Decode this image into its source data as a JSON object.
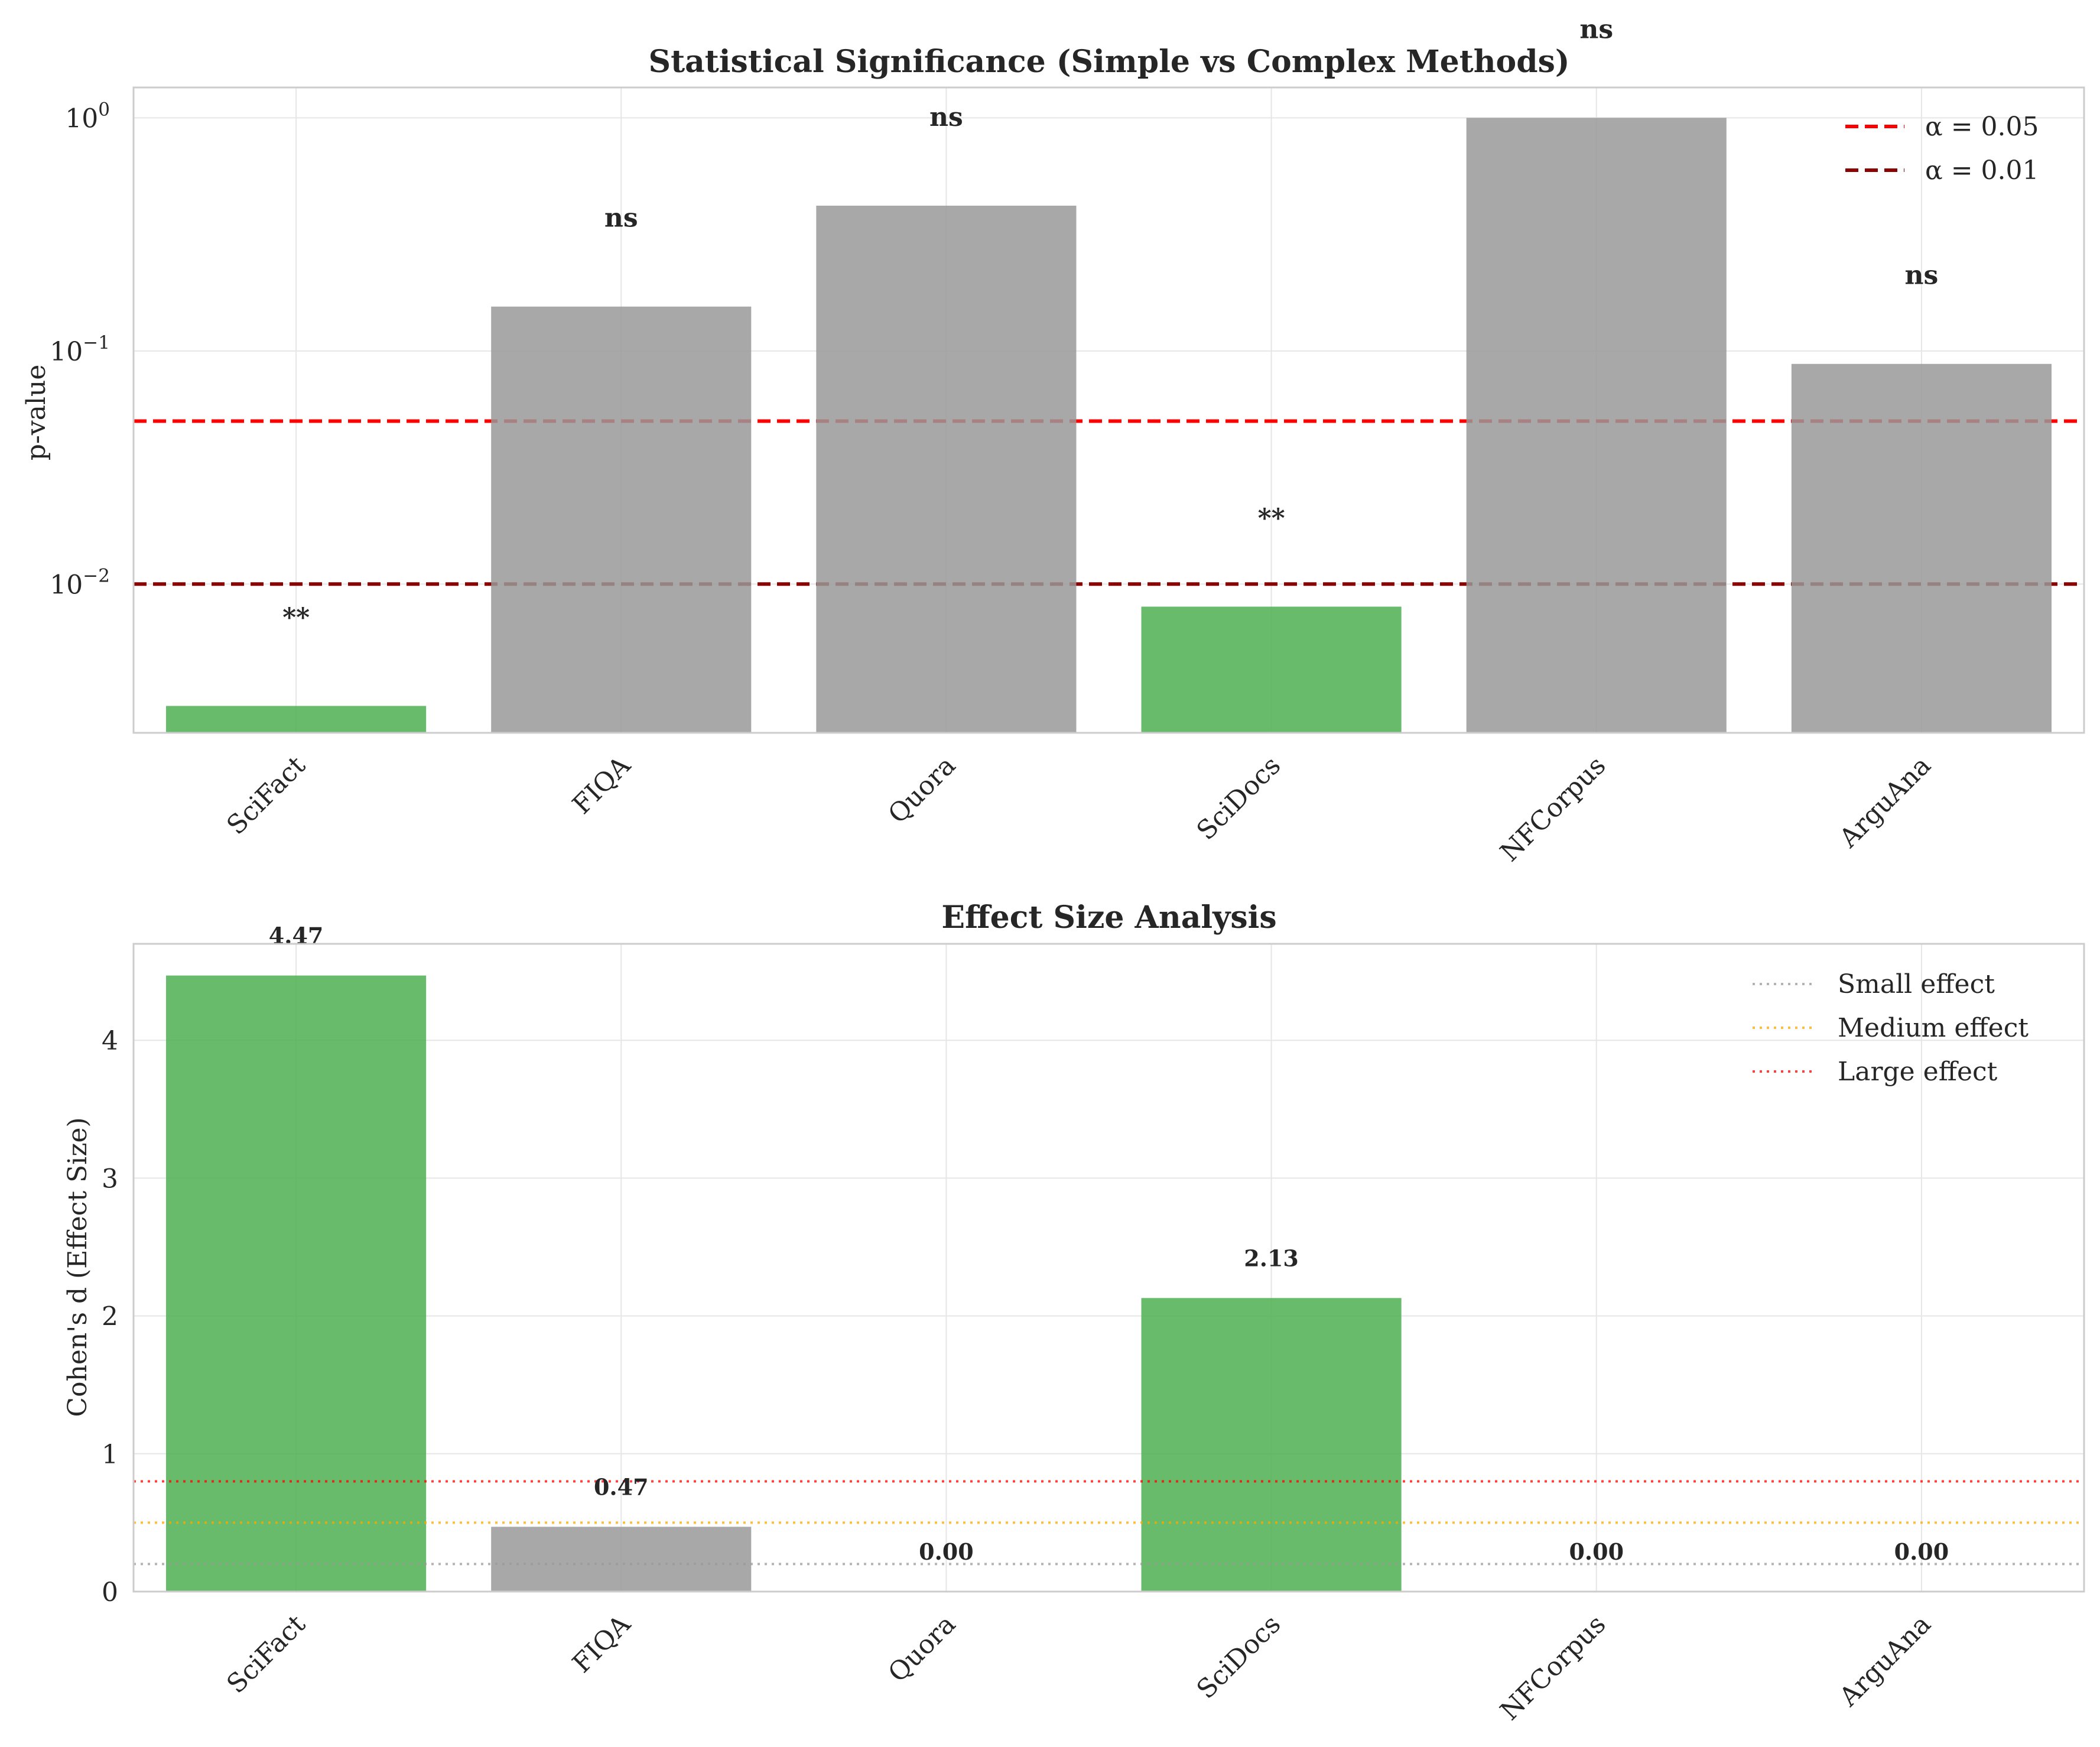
{
  "chart_data": [
    {
      "type": "bar",
      "title": "Statistical Significance (Simple vs Complex Methods)",
      "xlabel": "",
      "ylabel": "p-value",
      "yscale": "log",
      "ylim": [
        0.0023,
        1.35
      ],
      "yticks": [
        {
          "value": 0.01,
          "base": "10",
          "exp": "−2"
        },
        {
          "value": 0.1,
          "base": "10",
          "exp": "−1"
        },
        {
          "value": 1,
          "base": "10",
          "exp": "0"
        }
      ],
      "categories": [
        "SciFact",
        "FIQA",
        "Quora",
        "SciDocs",
        "NFCorpus",
        "ArguAna"
      ],
      "values": [
        0.003,
        0.155,
        0.42,
        0.008,
        1.0,
        0.088
      ],
      "bar_colors": [
        "#4caf50",
        "#999999",
        "#999999",
        "#4caf50",
        "#999999",
        "#999999"
      ],
      "annotations": [
        "**",
        "ns",
        "ns",
        "**",
        "ns",
        "ns"
      ],
      "reference_lines": [
        {
          "label": "α = 0.05",
          "value": 0.05,
          "color": "#ff0000",
          "style": "dashed"
        },
        {
          "label": "α = 0.01",
          "value": 0.01,
          "color": "#8b0000",
          "style": "dashed"
        }
      ],
      "legend_position": "top-right",
      "grid": true
    },
    {
      "type": "bar",
      "title": "Effect Size Analysis",
      "xlabel": "",
      "ylabel": "Cohen's d (Effect Size)",
      "ylim": [
        0,
        4.7
      ],
      "yticks": [
        0,
        1,
        2,
        3,
        4
      ],
      "categories": [
        "SciFact",
        "FIQA",
        "Quora",
        "SciDocs",
        "NFCorpus",
        "ArguAna"
      ],
      "values": [
        4.47,
        0.47,
        0.0,
        2.13,
        0.0,
        0.0
      ],
      "bar_colors": [
        "#4caf50",
        "#999999",
        "#999999",
        "#4caf50",
        "#999999",
        "#999999"
      ],
      "value_labels": [
        "4.47",
        "0.47",
        "0.00",
        "2.13",
        "0.00",
        "0.00"
      ],
      "reference_lines": [
        {
          "label": "Small effect",
          "value": 0.2,
          "color": "#999999",
          "style": "dotted"
        },
        {
          "label": "Medium effect",
          "value": 0.5,
          "color": "#ffa500",
          "style": "dotted"
        },
        {
          "label": "Large effect",
          "value": 0.8,
          "color": "#ff0000",
          "style": "dotted"
        }
      ],
      "legend_position": "top-right",
      "grid": true
    }
  ]
}
